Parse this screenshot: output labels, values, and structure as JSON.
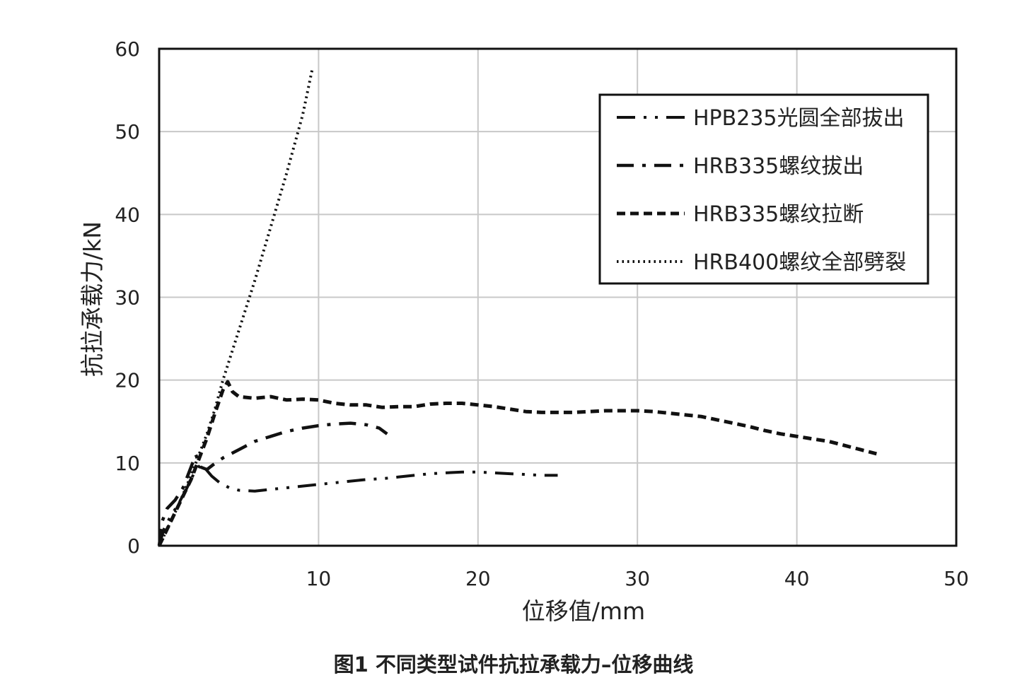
{
  "caption": "图1 不同类型试件抗拉承载力–位移曲线",
  "chart_data": {
    "type": "line",
    "title": "",
    "xlabel": "位移值/mm",
    "ylabel": "抗拉承载力/kN",
    "xlim": [
      0,
      50
    ],
    "ylim": [
      0,
      60
    ],
    "xticks": [
      10,
      20,
      30,
      40,
      50
    ],
    "yticks": [
      0,
      10,
      20,
      30,
      40,
      50,
      60
    ],
    "grid": true,
    "legend_position": "top-right",
    "series": [
      {
        "name": "HPB235光圆全部拔出",
        "dash": "long-dash-dot-dot",
        "color": "#111111",
        "x": [
          0,
          0.3,
          0.7,
          1.2,
          1.7,
          2.2,
          2.6,
          2.9,
          3.3,
          3.8,
          4.4,
          5.0,
          6.0,
          7.0,
          8.0,
          9.0,
          10.0,
          11.0,
          12.0,
          13.0,
          14.0,
          15.0,
          16.0,
          17.0,
          18.0,
          19.0,
          20.0,
          21.0,
          22.0,
          23.0,
          24.0,
          25.0
        ],
        "y": [
          0,
          2.0,
          3.5,
          5.0,
          6.8,
          8.8,
          9.8,
          9.3,
          8.4,
          7.6,
          7.0,
          6.7,
          6.6,
          6.8,
          7.0,
          7.2,
          7.4,
          7.6,
          7.8,
          8.0,
          8.1,
          8.3,
          8.5,
          8.7,
          8.8,
          8.9,
          8.9,
          8.8,
          8.7,
          8.6,
          8.5,
          8.5
        ]
      },
      {
        "name": "HRB335螺纹拔出",
        "dash": "dash-dot",
        "color": "#111111",
        "x": [
          0,
          0.2,
          0.5,
          1.0,
          1.5,
          2.0,
          2.3,
          2.6,
          3.0,
          3.4,
          4.0,
          5.0,
          6.0,
          7.0,
          8.0,
          9.0,
          10.0,
          11.0,
          12.0,
          13.0,
          13.8,
          14.3
        ],
        "y": [
          0,
          3.0,
          4.5,
          5.5,
          7.0,
          9.5,
          11.0,
          9.5,
          9.2,
          9.8,
          10.6,
          11.6,
          12.6,
          13.2,
          13.8,
          14.2,
          14.5,
          14.7,
          14.8,
          14.6,
          14.2,
          13.5
        ]
      },
      {
        "name": "HRB335螺纹拉断",
        "dash": "dash",
        "color": "#111111",
        "x": [
          0,
          0.5,
          1.0,
          1.5,
          2.0,
          2.5,
          3.0,
          3.5,
          4.0,
          4.3,
          4.6,
          5.0,
          6.0,
          7.0,
          8.0,
          9.0,
          10.0,
          11.0,
          12.0,
          13.0,
          14.0,
          15.0,
          16.0,
          17.0,
          18.0,
          19.0,
          20.0,
          21.0,
          22.0,
          23.0,
          24.0,
          25.0,
          26.0,
          27.0,
          28.0,
          29.0,
          30.0,
          31.0,
          32.0,
          33.0,
          34.0,
          35.0,
          36.0,
          37.0,
          38.0,
          39.0,
          40.0,
          41.0,
          42.0,
          43.0,
          44.0,
          45.0
        ],
        "y": [
          0,
          2.0,
          4.0,
          6.0,
          8.0,
          10.5,
          13.0,
          16.0,
          18.8,
          19.8,
          18.6,
          18.0,
          17.8,
          18.0,
          17.6,
          17.7,
          17.6,
          17.2,
          17.0,
          17.0,
          16.7,
          16.8,
          16.8,
          17.1,
          17.2,
          17.2,
          17.0,
          16.8,
          16.5,
          16.2,
          16.1,
          16.1,
          16.1,
          16.2,
          16.3,
          16.3,
          16.3,
          16.2,
          16.0,
          15.8,
          15.6,
          15.2,
          14.8,
          14.4,
          13.9,
          13.5,
          13.2,
          12.9,
          12.6,
          12.1,
          11.6,
          11.1
        ]
      },
      {
        "name": "HRB400螺纹全部劈裂",
        "dash": "dot",
        "color": "#111111",
        "x": [
          0,
          0.5,
          1.0,
          1.5,
          2.0,
          2.5,
          3.0,
          3.5,
          4.0,
          5.0,
          6.0,
          7.0,
          8.0,
          9.0,
          9.6
        ],
        "y": [
          0,
          2.0,
          4.0,
          6.2,
          8.5,
          11.0,
          13.5,
          16.5,
          20.0,
          26.0,
          32.0,
          38.5,
          45.0,
          52.0,
          57.5
        ]
      }
    ]
  }
}
